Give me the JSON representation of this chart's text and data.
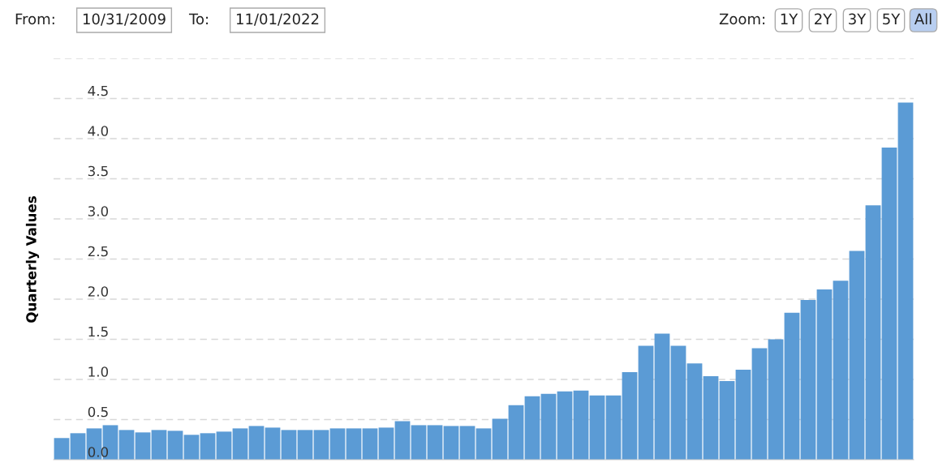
{
  "chart_data": {
    "type": "bar",
    "ylabel": "Quarterly Values",
    "categories": [
      null,
      null,
      null,
      null,
      null,
      null,
      null,
      null,
      null,
      null,
      null,
      null,
      null,
      null,
      null,
      null,
      null,
      null,
      null,
      null,
      null,
      null,
      null,
      null,
      null,
      null,
      null,
      null,
      null,
      null,
      null,
      null,
      null,
      null,
      null,
      null,
      null,
      null,
      null,
      null,
      null,
      null,
      null,
      null,
      null,
      null,
      null,
      null,
      null,
      null,
      null,
      null,
      null
    ],
    "values": [
      0.27,
      0.33,
      0.39,
      0.43,
      0.37,
      0.34,
      0.37,
      0.36,
      0.31,
      0.33,
      0.35,
      0.39,
      0.42,
      0.4,
      0.37,
      0.37,
      0.37,
      0.39,
      0.39,
      0.39,
      0.4,
      0.48,
      0.43,
      0.43,
      0.42,
      0.42,
      0.39,
      0.51,
      0.68,
      0.79,
      0.82,
      0.85,
      0.86,
      0.8,
      0.8,
      1.09,
      1.42,
      1.57,
      1.42,
      1.2,
      1.04,
      0.98,
      1.12,
      1.39,
      1.5,
      1.83,
      1.99,
      2.12,
      2.23,
      2.6,
      3.17,
      3.89,
      4.45
    ],
    "color": "#5b9bd5",
    "ylim": [
      0,
      5
    ],
    "yticks": [
      {
        "value": 0,
        "label": "0.0"
      },
      {
        "value": 0.5,
        "label": "0.5"
      },
      {
        "value": 1,
        "label": "1.0"
      },
      {
        "value": 1.5,
        "label": "1.5"
      },
      {
        "value": 2,
        "label": "2.0"
      },
      {
        "value": 2.5,
        "label": "2.5"
      },
      {
        "value": 3,
        "label": "3.0"
      },
      {
        "value": 3.5,
        "label": "3.5"
      },
      {
        "value": 4,
        "label": "4.0"
      },
      {
        "value": 4.5,
        "label": "4.5"
      },
      {
        "value": 5,
        "label": null
      }
    ],
    "grid": "y",
    "annotations": [
      "From:",
      "10/31/2009",
      "To:",
      "11/01/2022",
      "Zoom:",
      "1Y",
      "2Y",
      "3Y",
      "5Y",
      "All"
    ]
  }
}
